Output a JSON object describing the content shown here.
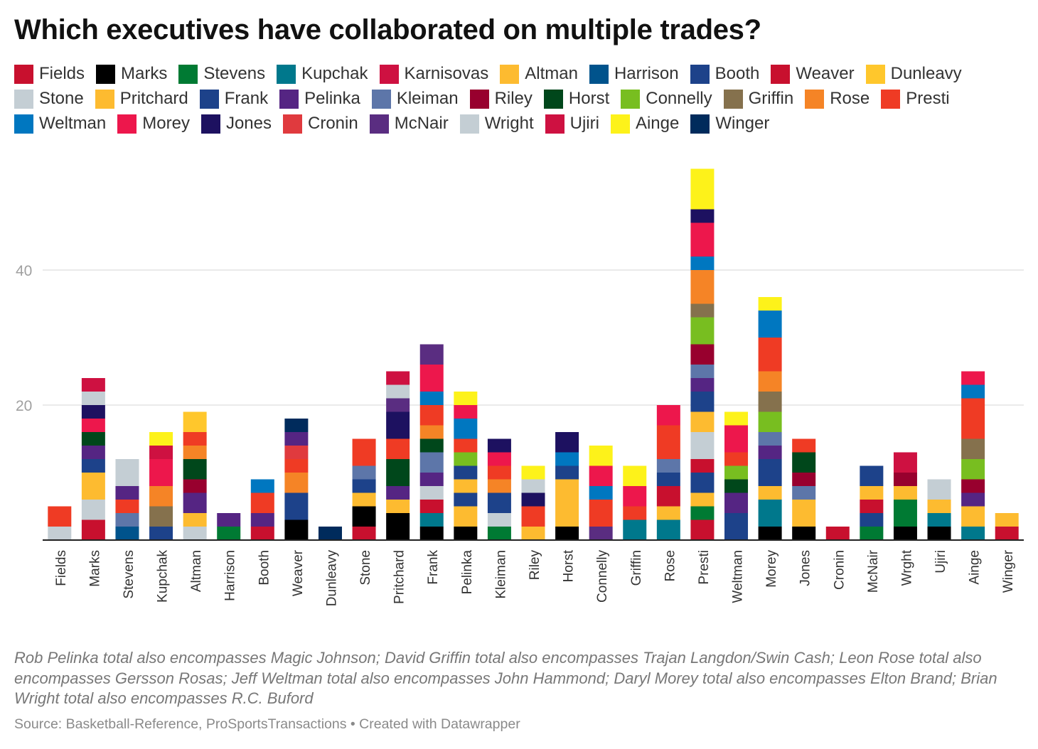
{
  "title": "Which executives have collaborated on multiple trades?",
  "note": "Rob Pelinka total also encompasses Magic Johnson; David Griffin total also encompasses Trajan Langdon/Swin Cash; Leon Rose total also encompasses Gersson Rosas; Jeff Weltman total also encompasses John Hammond; Daryl Morey total also encompasses Elton Brand; Brian Wright total also encompasses R.C. Buford",
  "source": "Source: Basketball-Reference, ProSportsTransactions • Created with Datawrapper",
  "legend": [
    {
      "name": "Fields",
      "color": "#c8102e"
    },
    {
      "name": "Marks",
      "color": "#000000"
    },
    {
      "name": "Stevens",
      "color": "#007a33"
    },
    {
      "name": "Kupchak",
      "color": "#00788c"
    },
    {
      "name": "Karnisovas",
      "color": "#ce1141"
    },
    {
      "name": "Altman",
      "color": "#fdbb30"
    },
    {
      "name": "Harrison",
      "color": "#00538c"
    },
    {
      "name": "Booth",
      "color": "#1d428a"
    },
    {
      "name": "Weaver",
      "color": "#c8102e"
    },
    {
      "name": "Dunleavy",
      "color": "#ffc72c"
    },
    {
      "name": "Stone",
      "color": "#c4ced4"
    },
    {
      "name": "Pritchard",
      "color": "#fdbb30"
    },
    {
      "name": "Frank",
      "color": "#1d428a"
    },
    {
      "name": "Pelinka",
      "color": "#552583"
    },
    {
      "name": "Kleiman",
      "color": "#5d76a9"
    },
    {
      "name": "Riley",
      "color": "#98002e"
    },
    {
      "name": "Horst",
      "color": "#00471b"
    },
    {
      "name": "Connelly",
      "color": "#78be20"
    },
    {
      "name": "Griffin",
      "color": "#85714d"
    },
    {
      "name": "Rose",
      "color": "#f58426"
    },
    {
      "name": "Presti",
      "color": "#ef3b24"
    },
    {
      "name": "Weltman",
      "color": "#0077c0"
    },
    {
      "name": "Morey",
      "color": "#ed174c"
    },
    {
      "name": "Jones",
      "color": "#1d1160"
    },
    {
      "name": "Cronin",
      "color": "#e03a3e"
    },
    {
      "name": "McNair",
      "color": "#5a2d81"
    },
    {
      "name": "Wright",
      "color": "#c4ced4"
    },
    {
      "name": "Ujiri",
      "color": "#ce1141"
    },
    {
      "name": "Ainge",
      "color": "#fdf21a"
    },
    {
      "name": "Winger",
      "color": "#002b5c"
    }
  ],
  "chart_data": {
    "type": "bar",
    "stacked": true,
    "orientation": "vertical",
    "ylim": [
      0,
      55
    ],
    "yticks": [
      20,
      40
    ],
    "grid": true,
    "categories": [
      "Fields",
      "Marks",
      "Stevens",
      "Kupchak",
      "Altman",
      "Harrison",
      "Booth",
      "Weaver",
      "Dunleavy",
      "Stone",
      "Pritchard",
      "Frank",
      "Pelinka",
      "Kleiman",
      "Riley",
      "Horst",
      "Connelly",
      "Griffin",
      "Rose",
      "Presti",
      "Weltman",
      "Morey",
      "Jones",
      "Cronin",
      "McNair",
      "Wrght",
      "Ujiri",
      "Ainge",
      "Winger"
    ],
    "stacks": [
      [
        {
          "s": "Stone",
          "v": 2
        },
        {
          "s": "Presti",
          "v": 3
        }
      ],
      [
        {
          "s": "Fields",
          "v": 3
        },
        {
          "s": "Stone",
          "v": 3
        },
        {
          "s": "Pritchard",
          "v": 4
        },
        {
          "s": "Frank",
          "v": 2
        },
        {
          "s": "Pelinka",
          "v": 2
        },
        {
          "s": "Horst",
          "v": 2
        },
        {
          "s": "Morey",
          "v": 2
        },
        {
          "s": "Jones",
          "v": 2
        },
        {
          "s": "Wright",
          "v": 2
        },
        {
          "s": "Ujiri",
          "v": 2
        }
      ],
      [
        {
          "s": "Harrison",
          "v": 2
        },
        {
          "s": "Kleiman",
          "v": 2
        },
        {
          "s": "Presti",
          "v": 2
        },
        {
          "s": "Pelinka",
          "v": 2
        },
        {
          "s": "Wright",
          "v": 4
        }
      ],
      [
        {
          "s": "Booth",
          "v": 2
        },
        {
          "s": "Griffin",
          "v": 3
        },
        {
          "s": "Rose",
          "v": 3
        },
        {
          "s": "Morey",
          "v": 4
        },
        {
          "s": "Karnisovas",
          "v": 2
        },
        {
          "s": "Ainge",
          "v": 2
        }
      ],
      [
        {
          "s": "Stone",
          "v": 2
        },
        {
          "s": "Pritchard",
          "v": 2
        },
        {
          "s": "Pelinka",
          "v": 3
        },
        {
          "s": "Riley",
          "v": 2
        },
        {
          "s": "Horst",
          "v": 3
        },
        {
          "s": "Rose",
          "v": 2
        },
        {
          "s": "Presti",
          "v": 2
        },
        {
          "s": "Dunleavy",
          "v": 3
        }
      ],
      [
        {
          "s": "Stevens",
          "v": 2
        },
        {
          "s": "Pelinka",
          "v": 2
        }
      ],
      [
        {
          "s": "Fields",
          "v": 2
        },
        {
          "s": "Pelinka",
          "v": 2
        },
        {
          "s": "Presti",
          "v": 3
        },
        {
          "s": "Weltman",
          "v": 2
        }
      ],
      [
        {
          "s": "Marks",
          "v": 3
        },
        {
          "s": "Booth",
          "v": 4
        },
        {
          "s": "Rose",
          "v": 3
        },
        {
          "s": "Presti",
          "v": 2
        },
        {
          "s": "Cronin",
          "v": 2
        },
        {
          "s": "Pelinka",
          "v": 2
        },
        {
          "s": "Winger",
          "v": 2
        }
      ],
      [
        {
          "s": "Winger",
          "v": 2
        }
      ],
      [
        {
          "s": "Fields",
          "v": 2
        },
        {
          "s": "Marks",
          "v": 3
        },
        {
          "s": "Pritchard",
          "v": 2
        },
        {
          "s": "Frank",
          "v": 2
        },
        {
          "s": "Kleiman",
          "v": 2
        },
        {
          "s": "Presti",
          "v": 4
        }
      ],
      [
        {
          "s": "Marks",
          "v": 4
        },
        {
          "s": "Pritchard",
          "v": 2
        },
        {
          "s": "Pelinka",
          "v": 2
        },
        {
          "s": "Horst",
          "v": 4
        },
        {
          "s": "Presti",
          "v": 3
        },
        {
          "s": "Jones",
          "v": 4
        },
        {
          "s": "McNair",
          "v": 2
        },
        {
          "s": "Stone",
          "v": 2
        },
        {
          "s": "Karnisovas",
          "v": 2
        }
      ],
      [
        {
          "s": "Marks",
          "v": 2
        },
        {
          "s": "Kupchak",
          "v": 2
        },
        {
          "s": "Fields",
          "v": 2
        },
        {
          "s": "Stone",
          "v": 2
        },
        {
          "s": "Pelinka",
          "v": 2
        },
        {
          "s": "Kleiman",
          "v": 3
        },
        {
          "s": "Horst",
          "v": 2
        },
        {
          "s": "Rose",
          "v": 2
        },
        {
          "s": "Presti",
          "v": 3
        },
        {
          "s": "Weltman",
          "v": 2
        },
        {
          "s": "Morey",
          "v": 4
        },
        {
          "s": "McNair",
          "v": 3
        }
      ],
      [
        {
          "s": "Marks",
          "v": 2
        },
        {
          "s": "Altman",
          "v": 3
        },
        {
          "s": "Booth",
          "v": 2
        },
        {
          "s": "Pritchard",
          "v": 2
        },
        {
          "s": "Frank",
          "v": 2
        },
        {
          "s": "Connelly",
          "v": 2
        },
        {
          "s": "Presti",
          "v": 2
        },
        {
          "s": "Weltman",
          "v": 3
        },
        {
          "s": "Morey",
          "v": 2
        },
        {
          "s": "Ainge",
          "v": 2
        }
      ],
      [
        {
          "s": "Stevens",
          "v": 2
        },
        {
          "s": "Stone",
          "v": 2
        },
        {
          "s": "Frank",
          "v": 3
        },
        {
          "s": "Rose",
          "v": 2
        },
        {
          "s": "Presti",
          "v": 2
        },
        {
          "s": "Morey",
          "v": 2
        },
        {
          "s": "Jones",
          "v": 2
        }
      ],
      [
        {
          "s": "Altman",
          "v": 2
        },
        {
          "s": "Presti",
          "v": 3
        },
        {
          "s": "Jones",
          "v": 2
        },
        {
          "s": "Stone",
          "v": 2
        },
        {
          "s": "Ainge",
          "v": 2
        }
      ],
      [
        {
          "s": "Marks",
          "v": 2
        },
        {
          "s": "Pritchard",
          "v": 7
        },
        {
          "s": "Frank",
          "v": 2
        },
        {
          "s": "Weltman",
          "v": 2
        },
        {
          "s": "Jones",
          "v": 3
        }
      ],
      [
        {
          "s": "McNair",
          "v": 2
        },
        {
          "s": "Presti",
          "v": 4
        },
        {
          "s": "Weltman",
          "v": 2
        },
        {
          "s": "Morey",
          "v": 3
        },
        {
          "s": "Ainge",
          "v": 3
        }
      ],
      [
        {
          "s": "Kupchak",
          "v": 3
        },
        {
          "s": "Presti",
          "v": 2
        },
        {
          "s": "Morey",
          "v": 3
        },
        {
          "s": "Ainge",
          "v": 3
        }
      ],
      [
        {
          "s": "Kupchak",
          "v": 3
        },
        {
          "s": "Pritchard",
          "v": 2
        },
        {
          "s": "Fields",
          "v": 3
        },
        {
          "s": "Booth",
          "v": 2
        },
        {
          "s": "Kleiman",
          "v": 2
        },
        {
          "s": "Presti",
          "v": 5
        },
        {
          "s": "Morey",
          "v": 3
        }
      ],
      [
        {
          "s": "Fields",
          "v": 3
        },
        {
          "s": "Stevens",
          "v": 2
        },
        {
          "s": "Pritchard",
          "v": 2
        },
        {
          "s": "Booth",
          "v": 3
        },
        {
          "s": "Fields",
          "v": 2
        },
        {
          "s": "Stone",
          "v": 4
        },
        {
          "s": "Pritchard",
          "v": 3
        },
        {
          "s": "Frank",
          "v": 3
        },
        {
          "s": "Pelinka",
          "v": 2
        },
        {
          "s": "Kleiman",
          "v": 2
        },
        {
          "s": "Riley",
          "v": 3
        },
        {
          "s": "Connelly",
          "v": 4
        },
        {
          "s": "Griffin",
          "v": 2
        },
        {
          "s": "Rose",
          "v": 5
        },
        {
          "s": "Weltman",
          "v": 2
        },
        {
          "s": "Morey",
          "v": 5
        },
        {
          "s": "Jones",
          "v": 2
        },
        {
          "s": "Ainge",
          "v": 6
        }
      ],
      [
        {
          "s": "Frank",
          "v": 4
        },
        {
          "s": "Pelinka",
          "v": 3
        },
        {
          "s": "Horst",
          "v": 2
        },
        {
          "s": "Connelly",
          "v": 2
        },
        {
          "s": "Presti",
          "v": 2
        },
        {
          "s": "Morey",
          "v": 4
        },
        {
          "s": "Ainge",
          "v": 2
        }
      ],
      [
        {
          "s": "Marks",
          "v": 2
        },
        {
          "s": "Kupchak",
          "v": 4
        },
        {
          "s": "Pritchard",
          "v": 2
        },
        {
          "s": "Frank",
          "v": 4
        },
        {
          "s": "Pelinka",
          "v": 2
        },
        {
          "s": "Kleiman",
          "v": 2
        },
        {
          "s": "Connelly",
          "v": 3
        },
        {
          "s": "Griffin",
          "v": 3
        },
        {
          "s": "Rose",
          "v": 3
        },
        {
          "s": "Presti",
          "v": 5
        },
        {
          "s": "Weltman",
          "v": 4
        },
        {
          "s": "Ainge",
          "v": 2
        }
      ],
      [
        {
          "s": "Marks",
          "v": 2
        },
        {
          "s": "Pritchard",
          "v": 4
        },
        {
          "s": "Kleiman",
          "v": 2
        },
        {
          "s": "Riley",
          "v": 2
        },
        {
          "s": "Horst",
          "v": 3
        },
        {
          "s": "Presti",
          "v": 2
        }
      ],
      [
        {
          "s": "Fields",
          "v": 2
        }
      ],
      [
        {
          "s": "Stevens",
          "v": 2
        },
        {
          "s": "Booth",
          "v": 2
        },
        {
          "s": "Fields",
          "v": 2
        },
        {
          "s": "Pritchard",
          "v": 2
        },
        {
          "s": "Frank",
          "v": 3
        }
      ],
      [
        {
          "s": "Marks",
          "v": 2
        },
        {
          "s": "Stevens",
          "v": 4
        },
        {
          "s": "Pritchard",
          "v": 2
        },
        {
          "s": "Riley",
          "v": 2
        },
        {
          "s": "Karnisovas",
          "v": 3
        }
      ],
      [
        {
          "s": "Marks",
          "v": 2
        },
        {
          "s": "Kupchak",
          "v": 2
        },
        {
          "s": "Pritchard",
          "v": 2
        },
        {
          "s": "Stone",
          "v": 3
        }
      ],
      [
        {
          "s": "Kupchak",
          "v": 2
        },
        {
          "s": "Pritchard",
          "v": 3
        },
        {
          "s": "Pelinka",
          "v": 2
        },
        {
          "s": "Riley",
          "v": 2
        },
        {
          "s": "Connelly",
          "v": 3
        },
        {
          "s": "Griffin",
          "v": 3
        },
        {
          "s": "Presti",
          "v": 6
        },
        {
          "s": "Weltman",
          "v": 2
        },
        {
          "s": "Morey",
          "v": 2
        }
      ],
      [
        {
          "s": "Fields",
          "v": 2
        },
        {
          "s": "Pritchard",
          "v": 2
        }
      ]
    ]
  }
}
